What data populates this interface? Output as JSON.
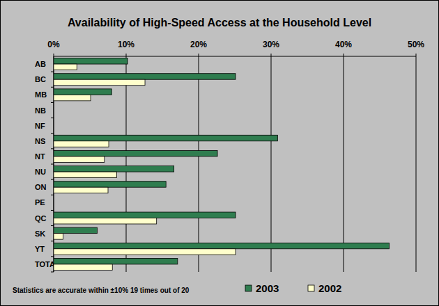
{
  "chart_data": {
    "type": "bar",
    "orientation": "horizontal",
    "title": "Availability of High-Speed Access at the Household Level",
    "annotation": "Statistics are accurate within ±10% 19 times out of 20",
    "categories": [
      "AB",
      "BC",
      "MB",
      "NB",
      "NF",
      "NS",
      "NT",
      "NU",
      "ON",
      "PE",
      "QC",
      "SK",
      "YT",
      "TOTAL"
    ],
    "series": [
      {
        "name": "2003",
        "color": "#2f7d4f",
        "values": [
          10.2,
          25.1,
          8.0,
          null,
          null,
          30.9,
          22.6,
          16.6,
          15.5,
          null,
          25.1,
          6.0,
          46.3,
          17.1
        ]
      },
      {
        "name": "2002",
        "color": "#ffffcc",
        "values": [
          3.2,
          12.6,
          5.1,
          null,
          null,
          7.6,
          7.0,
          8.7,
          7.5,
          null,
          14.2,
          1.3,
          25.1,
          8.1
        ]
      }
    ],
    "xlim": [
      0,
      50
    ],
    "xticks": [
      {
        "value": 0,
        "label": "0%"
      },
      {
        "value": 10,
        "label": "10%"
      },
      {
        "value": 20,
        "label": "20%"
      },
      {
        "value": 30,
        "label": "30%"
      },
      {
        "value": 40,
        "label": "40%"
      },
      {
        "value": 50,
        "label": "50%"
      }
    ],
    "grid": true,
    "legend": "bottom"
  }
}
